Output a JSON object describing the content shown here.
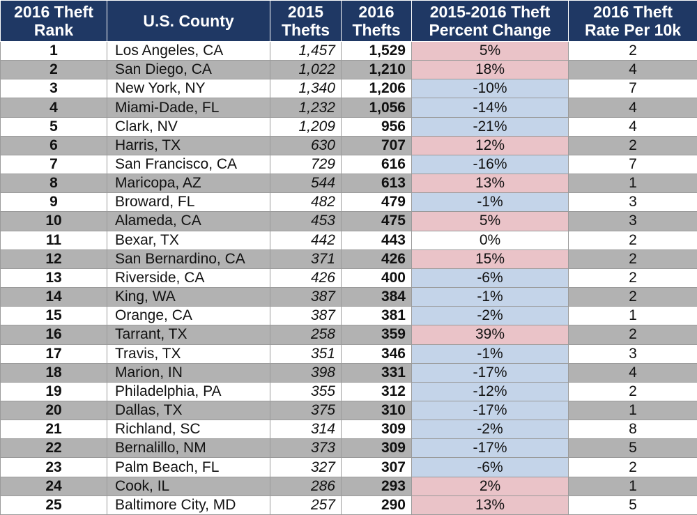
{
  "headers": {
    "rank": [
      "2016 Theft",
      "Rank"
    ],
    "county": [
      "U.S. County"
    ],
    "thefts_2015": [
      "2015",
      "Thefts"
    ],
    "thefts_2016": [
      "2016",
      "Thefts"
    ],
    "pct_change": [
      "2015-2016 Theft",
      "Percent Change"
    ],
    "rate": [
      "2016 Theft",
      "Rate Per 10k"
    ]
  },
  "colors": {
    "header_bg": "#1f3864",
    "increase_bg": "#eac3c8",
    "decrease_bg": "#c4d4e9",
    "alt_row_bg": "#b2b2b2"
  },
  "rows": [
    {
      "rank": "1",
      "county": "Los Angeles, CA",
      "thefts_2015": "1,457",
      "thefts_2016": "1,529",
      "pct_change": "5%",
      "rate": "2",
      "change": "up"
    },
    {
      "rank": "2",
      "county": "San Diego, CA",
      "thefts_2015": "1,022",
      "thefts_2016": "1,210",
      "pct_change": "18%",
      "rate": "4",
      "change": "up"
    },
    {
      "rank": "3",
      "county": "New York, NY",
      "thefts_2015": "1,340",
      "thefts_2016": "1,206",
      "pct_change": "-10%",
      "rate": "7",
      "change": "down"
    },
    {
      "rank": "4",
      "county": "Miami-Dade, FL",
      "thefts_2015": "1,232",
      "thefts_2016": "1,056",
      "pct_change": "-14%",
      "rate": "4",
      "change": "down"
    },
    {
      "rank": "5",
      "county": "Clark, NV",
      "thefts_2015": "1,209",
      "thefts_2016": "956",
      "pct_change": "-21%",
      "rate": "4",
      "change": "down"
    },
    {
      "rank": "6",
      "county": "Harris, TX",
      "thefts_2015": "630",
      "thefts_2016": "707",
      "pct_change": "12%",
      "rate": "2",
      "change": "up"
    },
    {
      "rank": "7",
      "county": "San Francisco, CA",
      "thefts_2015": "729",
      "thefts_2016": "616",
      "pct_change": "-16%",
      "rate": "7",
      "change": "down"
    },
    {
      "rank": "8",
      "county": "Maricopa, AZ",
      "thefts_2015": "544",
      "thefts_2016": "613",
      "pct_change": "13%",
      "rate": "1",
      "change": "up"
    },
    {
      "rank": "9",
      "county": "Broward, FL",
      "thefts_2015": "482",
      "thefts_2016": "479",
      "pct_change": "-1%",
      "rate": "3",
      "change": "down"
    },
    {
      "rank": "10",
      "county": "Alameda, CA",
      "thefts_2015": "453",
      "thefts_2016": "475",
      "pct_change": "5%",
      "rate": "3",
      "change": "up"
    },
    {
      "rank": "11",
      "county": "Bexar, TX",
      "thefts_2015": "442",
      "thefts_2016": "443",
      "pct_change": "0%",
      "rate": "2",
      "change": "none"
    },
    {
      "rank": "12",
      "county": "San Bernardino, CA",
      "thefts_2015": "371",
      "thefts_2016": "426",
      "pct_change": "15%",
      "rate": "2",
      "change": "up"
    },
    {
      "rank": "13",
      "county": "Riverside, CA",
      "thefts_2015": "426",
      "thefts_2016": "400",
      "pct_change": "-6%",
      "rate": "2",
      "change": "down"
    },
    {
      "rank": "14",
      "county": "King, WA",
      "thefts_2015": "387",
      "thefts_2016": "384",
      "pct_change": "-1%",
      "rate": "2",
      "change": "down"
    },
    {
      "rank": "15",
      "county": "Orange, CA",
      "thefts_2015": "387",
      "thefts_2016": "381",
      "pct_change": "-2%",
      "rate": "1",
      "change": "down"
    },
    {
      "rank": "16",
      "county": "Tarrant, TX",
      "thefts_2015": "258",
      "thefts_2016": "359",
      "pct_change": "39%",
      "rate": "2",
      "change": "up"
    },
    {
      "rank": "17",
      "county": "Travis, TX",
      "thefts_2015": "351",
      "thefts_2016": "346",
      "pct_change": "-1%",
      "rate": "3",
      "change": "down"
    },
    {
      "rank": "18",
      "county": "Marion, IN",
      "thefts_2015": "398",
      "thefts_2016": "331",
      "pct_change": "-17%",
      "rate": "4",
      "change": "down"
    },
    {
      "rank": "19",
      "county": "Philadelphia, PA",
      "thefts_2015": "355",
      "thefts_2016": "312",
      "pct_change": "-12%",
      "rate": "2",
      "change": "down"
    },
    {
      "rank": "20",
      "county": "Dallas, TX",
      "thefts_2015": "375",
      "thefts_2016": "310",
      "pct_change": "-17%",
      "rate": "1",
      "change": "down"
    },
    {
      "rank": "21",
      "county": "Richland, SC",
      "thefts_2015": "314",
      "thefts_2016": "309",
      "pct_change": "-2%",
      "rate": "8",
      "change": "down"
    },
    {
      "rank": "22",
      "county": "Bernalillo, NM",
      "thefts_2015": "373",
      "thefts_2016": "309",
      "pct_change": "-17%",
      "rate": "5",
      "change": "down"
    },
    {
      "rank": "23",
      "county": "Palm Beach, FL",
      "thefts_2015": "327",
      "thefts_2016": "307",
      "pct_change": "-6%",
      "rate": "2",
      "change": "down"
    },
    {
      "rank": "24",
      "county": "Cook, IL",
      "thefts_2015": "286",
      "thefts_2016": "293",
      "pct_change": "2%",
      "rate": "1",
      "change": "up"
    },
    {
      "rank": "25",
      "county": "Baltimore City, MD",
      "thefts_2015": "257",
      "thefts_2016": "290",
      "pct_change": "13%",
      "rate": "5",
      "change": "up"
    }
  ]
}
